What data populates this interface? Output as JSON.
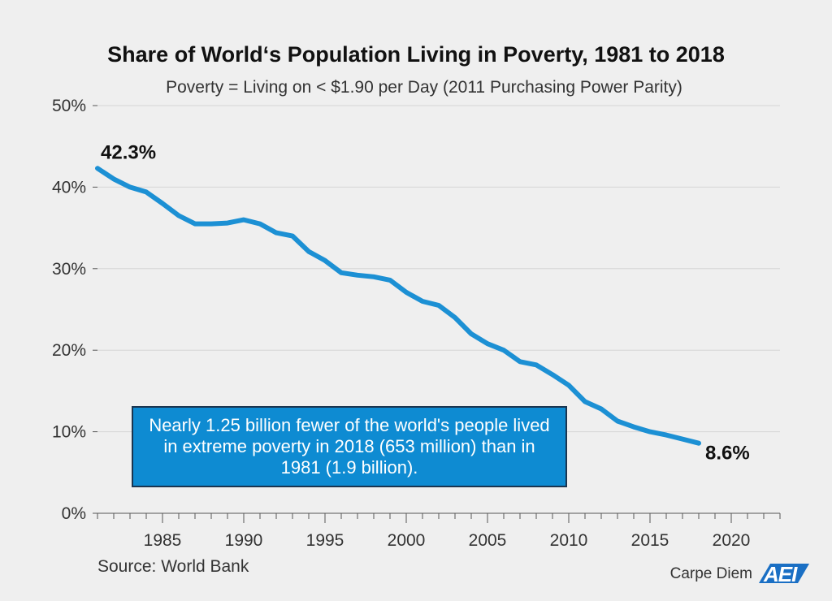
{
  "chart_data": {
    "type": "line",
    "title": "Share of World‘s Population Living in Poverty, 1981 to 2018",
    "subtitle": "Poverty = Living on < $1.90 per Day (2011 Purchasing Power Parity)",
    "x": [
      1981,
      1982,
      1983,
      1984,
      1985,
      1986,
      1987,
      1988,
      1989,
      1990,
      1991,
      1992,
      1993,
      1994,
      1995,
      1996,
      1997,
      1998,
      1999,
      2000,
      2001,
      2002,
      2003,
      2004,
      2005,
      2006,
      2007,
      2008,
      2009,
      2010,
      2011,
      2012,
      2013,
      2014,
      2015,
      2016,
      2017,
      2018
    ],
    "series": [
      {
        "values": [
          42.3,
          41.0,
          40.0,
          39.4,
          38.0,
          36.5,
          35.5,
          35.5,
          35.6,
          36.0,
          35.5,
          34.4,
          34.0,
          32.1,
          31.0,
          29.5,
          29.2,
          29.0,
          28.6,
          27.1,
          26.0,
          25.5,
          24.0,
          22.0,
          20.8,
          20.0,
          18.6,
          18.2,
          17.0,
          15.7,
          13.7,
          12.8,
          11.3,
          10.6,
          10.0,
          9.6,
          9.1,
          8.6
        ],
        "color": "#1c90d4"
      }
    ],
    "xlim": [
      1981,
      2023
    ],
    "ylim": [
      0,
      50
    ],
    "y_ticks": [
      0,
      10,
      20,
      30,
      40,
      50
    ],
    "y_tick_labels": [
      "0%",
      "10%",
      "20%",
      "30%",
      "40%",
      "50%"
    ],
    "x_ticks": [
      1985,
      1990,
      1995,
      2000,
      2005,
      2010,
      2015,
      2020
    ],
    "x_tick_labels": [
      "1985",
      "1990",
      "1995",
      "2000",
      "2005",
      "2010",
      "2015",
      "2020"
    ],
    "data_labels": [
      {
        "x": 1981,
        "text": "42.3%"
      },
      {
        "x": 2018,
        "text": "8.6%"
      }
    ],
    "grid": true,
    "annotation": "Nearly 1.25 billion fewer of the world's people lived in extreme poverty in 2018 (653 million) than in 1981 (1.9 billion).",
    "annotation_color": "#0e8bd2"
  },
  "source": "Source: World Bank",
  "brand": {
    "text": "Carpe Diem",
    "logo": "AEI"
  }
}
